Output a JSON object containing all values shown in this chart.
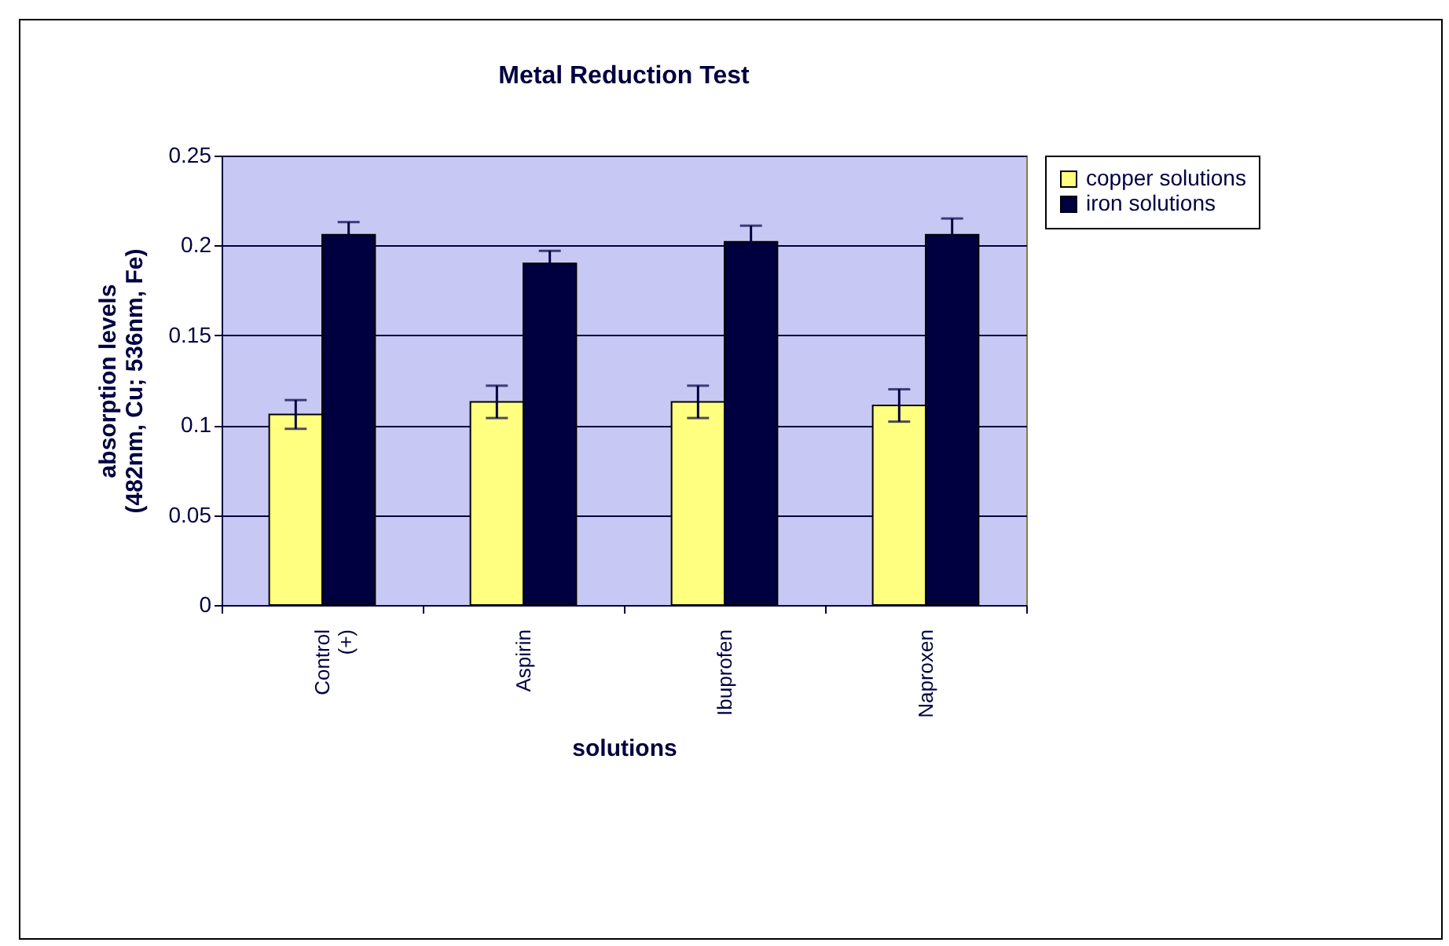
{
  "chart_data": {
    "type": "bar",
    "title": "Metal Reduction Test",
    "xlabel": "solutions",
    "ylabel": "absorption levels (482nm, Cu; 536nm, Fe)",
    "categories": [
      "Control (+)",
      "Aspirin",
      "Ibuprofen",
      "Naproxen"
    ],
    "series": [
      {
        "name": "copper solutions",
        "color": "#ffff80",
        "values": [
          0.106,
          0.113,
          0.113,
          0.111
        ],
        "errors": [
          0.008,
          0.009,
          0.009,
          0.009
        ]
      },
      {
        "name": "iron solutions",
        "color": "#000040",
        "values": [
          0.206,
          0.19,
          0.202,
          0.206
        ],
        "errors": [
          0.007,
          0.007,
          0.009,
          0.009
        ]
      }
    ],
    "ylim": [
      0,
      0.25
    ],
    "yticks": [
      0,
      0.05,
      0.1,
      0.15,
      0.2,
      0.25
    ],
    "grid": "y",
    "legend": "right"
  }
}
